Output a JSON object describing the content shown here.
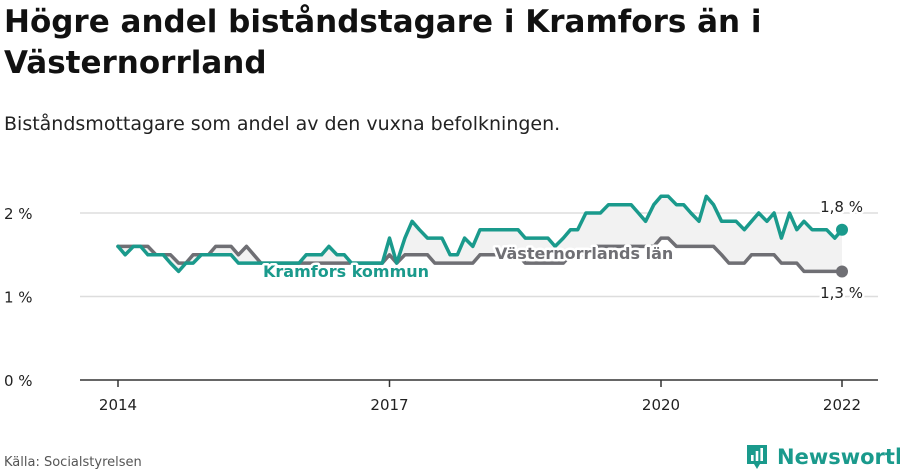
{
  "title": "Högre andel biståndstagare i Kramfors än i Västernorrland",
  "subtitle": "Biståndsmottagare som andel av den vuxna befolkningen.",
  "source": "Källa: Socialstyrelsen",
  "brand": "Newsworthy",
  "colors": {
    "kramfors": "#1a9a8c",
    "lan": "#6f6f74",
    "fill": "#f2f2f2",
    "grid": "#dddddd",
    "axis": "#333333"
  },
  "chart_data": {
    "type": "line",
    "xlim": [
      2014,
      2022.3
    ],
    "ylim": [
      0,
      2.2
    ],
    "yticks": [
      {
        "value": 0,
        "label": "0 %"
      },
      {
        "value": 1,
        "label": "1 %"
      },
      {
        "value": 2,
        "label": "2 %"
      }
    ],
    "xticks": [
      {
        "value": 2014,
        "label": "2014"
      },
      {
        "value": 2017,
        "label": "2017"
      },
      {
        "value": 2020,
        "label": "2020"
      },
      {
        "value": 2022,
        "label": "2022"
      }
    ],
    "end_labels": {
      "kramfors": "1,8 %",
      "lan": "1,3 %"
    },
    "series": [
      {
        "name": "Kramfors kommun",
        "key": "kramfors",
        "x": [
          2014.0,
          2014.08,
          2014.17,
          2014.25,
          2014.33,
          2014.42,
          2014.5,
          2014.58,
          2014.67,
          2014.75,
          2014.83,
          2014.92,
          2015.0,
          2015.08,
          2015.17,
          2015.25,
          2015.33,
          2015.42,
          2015.5,
          2015.58,
          2015.67,
          2015.75,
          2015.83,
          2015.92,
          2016.0,
          2016.08,
          2016.17,
          2016.25,
          2016.33,
          2016.42,
          2016.5,
          2016.58,
          2016.67,
          2016.75,
          2016.83,
          2016.92,
          2017.0,
          2017.08,
          2017.17,
          2017.25,
          2017.33,
          2017.42,
          2017.5,
          2017.58,
          2017.67,
          2017.75,
          2017.83,
          2017.92,
          2018.0,
          2018.08,
          2018.17,
          2018.25,
          2018.33,
          2018.42,
          2018.5,
          2018.58,
          2018.67,
          2018.75,
          2018.83,
          2018.92,
          2019.0,
          2019.08,
          2019.17,
          2019.25,
          2019.33,
          2019.42,
          2019.5,
          2019.58,
          2019.67,
          2019.75,
          2019.83,
          2019.92,
          2020.0,
          2020.08,
          2020.17,
          2020.25,
          2020.33,
          2020.42,
          2020.5,
          2020.58,
          2020.67,
          2020.75,
          2020.83,
          2020.92,
          2021.0,
          2021.08,
          2021.17,
          2021.25,
          2021.33,
          2021.42,
          2021.5,
          2021.58,
          2021.67,
          2021.75,
          2021.83,
          2021.92,
          2022.0
        ],
        "values": [
          1.6,
          1.5,
          1.6,
          1.6,
          1.5,
          1.5,
          1.5,
          1.4,
          1.3,
          1.4,
          1.4,
          1.5,
          1.5,
          1.5,
          1.5,
          1.5,
          1.4,
          1.4,
          1.4,
          1.4,
          1.4,
          1.4,
          1.4,
          1.4,
          1.4,
          1.5,
          1.5,
          1.5,
          1.6,
          1.5,
          1.5,
          1.4,
          1.4,
          1.4,
          1.4,
          1.4,
          1.7,
          1.4,
          1.7,
          1.9,
          1.8,
          1.7,
          1.7,
          1.7,
          1.5,
          1.5,
          1.7,
          1.6,
          1.8,
          1.8,
          1.8,
          1.8,
          1.8,
          1.8,
          1.7,
          1.7,
          1.7,
          1.7,
          1.6,
          1.7,
          1.8,
          1.8,
          2.0,
          2.0,
          2.0,
          2.1,
          2.1,
          2.1,
          2.1,
          2.0,
          1.9,
          2.1,
          2.2,
          2.2,
          2.1,
          2.1,
          2.0,
          1.9,
          2.2,
          2.1,
          1.9,
          1.9,
          1.9,
          1.8,
          1.9,
          2.0,
          1.9,
          2.0,
          1.7,
          2.0,
          1.8,
          1.9,
          1.8,
          1.8,
          1.8,
          1.7,
          1.8
        ]
      },
      {
        "name": "Västernorrlands län",
        "key": "lan",
        "x": [
          2014.0,
          2014.08,
          2014.17,
          2014.25,
          2014.33,
          2014.42,
          2014.5,
          2014.58,
          2014.67,
          2014.75,
          2014.83,
          2014.92,
          2015.0,
          2015.08,
          2015.17,
          2015.25,
          2015.33,
          2015.42,
          2015.5,
          2015.58,
          2015.67,
          2015.75,
          2015.83,
          2015.92,
          2016.0,
          2016.08,
          2016.17,
          2016.25,
          2016.33,
          2016.42,
          2016.5,
          2016.58,
          2016.67,
          2016.75,
          2016.83,
          2016.92,
          2017.0,
          2017.08,
          2017.17,
          2017.25,
          2017.33,
          2017.42,
          2017.5,
          2017.58,
          2017.67,
          2017.75,
          2017.83,
          2017.92,
          2018.0,
          2018.08,
          2018.17,
          2018.25,
          2018.33,
          2018.42,
          2018.5,
          2018.58,
          2018.67,
          2018.75,
          2018.83,
          2018.92,
          2019.0,
          2019.08,
          2019.17,
          2019.25,
          2019.33,
          2019.42,
          2019.5,
          2019.58,
          2019.67,
          2019.75,
          2019.83,
          2019.92,
          2020.0,
          2020.08,
          2020.17,
          2020.25,
          2020.33,
          2020.42,
          2020.5,
          2020.58,
          2020.67,
          2020.75,
          2020.83,
          2020.92,
          2021.0,
          2021.08,
          2021.17,
          2021.25,
          2021.33,
          2021.42,
          2021.5,
          2021.58,
          2021.67,
          2021.75,
          2021.83,
          2021.92,
          2022.0
        ],
        "values": [
          1.6,
          1.6,
          1.6,
          1.6,
          1.6,
          1.5,
          1.5,
          1.5,
          1.4,
          1.4,
          1.5,
          1.5,
          1.5,
          1.6,
          1.6,
          1.6,
          1.5,
          1.6,
          1.5,
          1.4,
          1.4,
          1.4,
          1.4,
          1.4,
          1.4,
          1.4,
          1.4,
          1.4,
          1.4,
          1.4,
          1.4,
          1.4,
          1.4,
          1.4,
          1.4,
          1.4,
          1.5,
          1.4,
          1.5,
          1.5,
          1.5,
          1.5,
          1.4,
          1.4,
          1.4,
          1.4,
          1.4,
          1.4,
          1.5,
          1.5,
          1.5,
          1.5,
          1.5,
          1.5,
          1.4,
          1.4,
          1.4,
          1.4,
          1.4,
          1.4,
          1.5,
          1.5,
          1.5,
          1.6,
          1.6,
          1.6,
          1.6,
          1.6,
          1.6,
          1.6,
          1.6,
          1.6,
          1.7,
          1.7,
          1.6,
          1.6,
          1.6,
          1.6,
          1.6,
          1.6,
          1.5,
          1.4,
          1.4,
          1.4,
          1.5,
          1.5,
          1.5,
          1.5,
          1.4,
          1.4,
          1.4,
          1.3,
          1.3,
          1.3,
          1.3,
          1.3,
          1.3
        ]
      }
    ]
  }
}
